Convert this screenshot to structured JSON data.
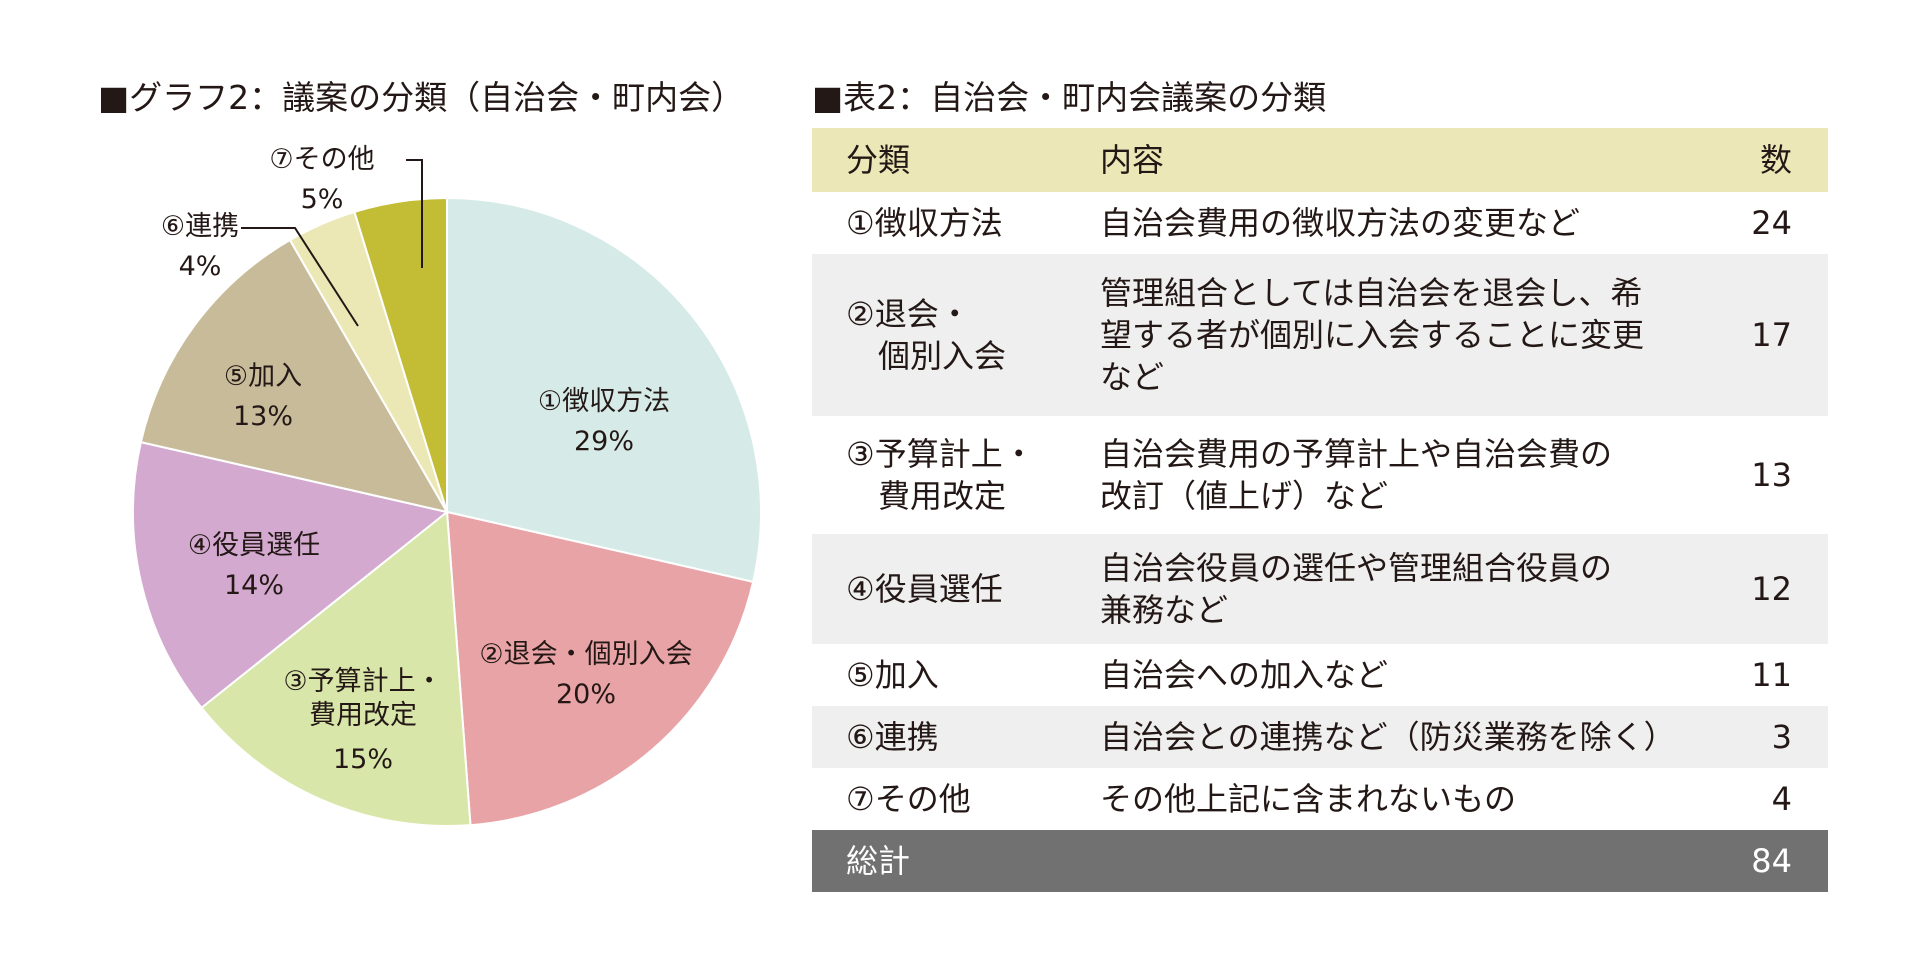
{
  "chart_title": "■グラフ2：議案の分類（自治会・町内会）",
  "table_title": "■表2：自治会・町内会議案の分類",
  "chart_data": {
    "type": "pie",
    "title": "■グラフ2：議案の分類（自治会・町内会）",
    "start": "12 o'clock, clockwise",
    "slices": [
      {
        "label": "①徴収方法",
        "percent_label": "29%",
        "value": 24,
        "color": "#d6ebe8"
      },
      {
        "label": "②退会・個別入会",
        "percent_label": "20%",
        "value": 17,
        "color": "#e8a3a6"
      },
      {
        "label": "③予算計上・\n費用改定",
        "percent_label": "15%",
        "value": 13,
        "color": "#d9e6a9"
      },
      {
        "label": "④役員選任",
        "percent_label": "14%",
        "value": 12,
        "color": "#d3a9cf"
      },
      {
        "label": "⑤加入",
        "percent_label": "13%",
        "value": 11,
        "color": "#c8bb9a"
      },
      {
        "label": "⑥連携",
        "percent_label": "4%",
        "value": 3,
        "color": "#ece8b5"
      },
      {
        "label": "⑦その他",
        "percent_label": "5%",
        "value": 4,
        "color": "#c3bc35"
      }
    ]
  },
  "table": {
    "headers": [
      "分類",
      "内容",
      "数"
    ],
    "rows": [
      {
        "category": "①徴収方法",
        "description": "自治会費用の徴収方法の変更など",
        "count": "24"
      },
      {
        "category": "②退会・\n　個別入会",
        "description": "管理組合としては自治会を退会し、希\n望する者が個別に入会することに変更\nなど",
        "count": "17"
      },
      {
        "category": "③予算計上・\n　費用改定",
        "description": "自治会費用の予算計上や自治会費の\n改訂（値上げ）など",
        "count": "13"
      },
      {
        "category": "④役員選任",
        "description": "自治会役員の選任や管理組合役員の\n兼務など",
        "count": "12"
      },
      {
        "category": "⑤加入",
        "description": "自治会への加入など",
        "count": "11"
      },
      {
        "category": "⑥連携",
        "description": "自治会との連携など（防災業務を除く）",
        "count": "3"
      },
      {
        "category": "⑦その他",
        "description": "その他上記に含まれないもの",
        "count": "4"
      }
    ],
    "total": {
      "label": "総計",
      "count": "84"
    }
  }
}
